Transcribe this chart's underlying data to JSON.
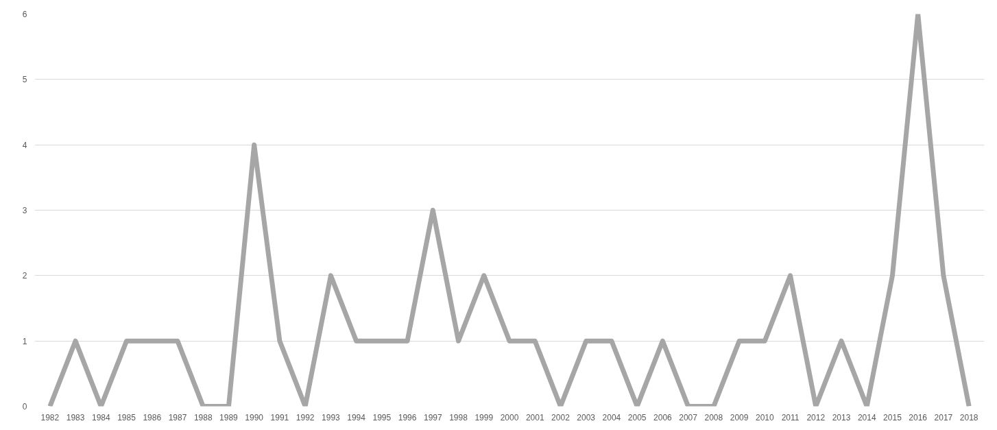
{
  "chart_data": {
    "type": "line",
    "categories": [
      "1982",
      "1983",
      "1984",
      "1985",
      "1986",
      "1987",
      "1988",
      "1989",
      "1990",
      "1991",
      "1992",
      "1993",
      "1994",
      "1995",
      "1996",
      "1997",
      "1998",
      "1999",
      "2000",
      "2001",
      "2002",
      "2003",
      "2004",
      "2005",
      "2006",
      "2007",
      "2008",
      "2009",
      "2010",
      "2011",
      "2012",
      "2013",
      "2014",
      "2015",
      "2016",
      "2017",
      "2018"
    ],
    "series": [
      {
        "color": "#a6a6a6",
        "values": [
          0,
          1,
          0,
          1,
          1,
          1,
          0,
          0,
          4,
          1,
          0,
          2,
          1,
          1,
          1,
          3,
          1,
          2,
          1,
          1,
          0,
          1,
          1,
          0,
          1,
          0,
          0,
          1,
          1,
          2,
          0,
          1,
          0,
          2,
          6,
          2,
          0
        ]
      }
    ],
    "ylim": [
      0,
      6
    ],
    "yticks": [
      0,
      1,
      2,
      3,
      4,
      5,
      6
    ],
    "grid": "y",
    "marker": "none",
    "line_style": "solid"
  }
}
